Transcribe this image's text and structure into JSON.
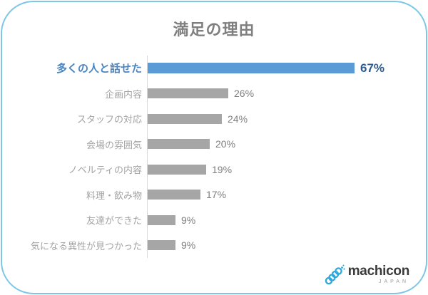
{
  "card": {
    "border_color": "#7cc7e6",
    "background": "#ffffff"
  },
  "title": "満足の理由",
  "chart_data": {
    "type": "bar",
    "orientation": "horizontal",
    "title": "満足の理由",
    "title_color": "#7f7f7f",
    "categories": [
      "多くの人と話せた",
      "企画内容",
      "スタッフの対応",
      "会場の雰囲気",
      "ノベルティの内容",
      "料理・飲み物",
      "友達ができた",
      "気になる異性が見つかった"
    ],
    "values": [
      67,
      26,
      24,
      20,
      19,
      17,
      9,
      9
    ],
    "value_labels": [
      "67%",
      "26%",
      "24%",
      "20%",
      "19%",
      "17%",
      "9%",
      "9%"
    ],
    "highlight_index": 0,
    "highlight_bar_color": "#5b9bd5",
    "highlight_label_color": "#4a86c2",
    "highlight_value_color": "#2e5b8f",
    "bar_color": "#a6a6a6",
    "label_color": "#a3a3a3",
    "value_color": "#7f7f7f",
    "axis_line_color": "#d9d9d9",
    "xlim": [
      0,
      70
    ],
    "grid": false,
    "legend": false,
    "data_labels": true
  },
  "logo": {
    "name": "machicon",
    "sub": "JAPAN",
    "icon": "streamer-coil-icon",
    "icon_color": "#2fa8dc",
    "text_color": "#3a3a3a"
  }
}
